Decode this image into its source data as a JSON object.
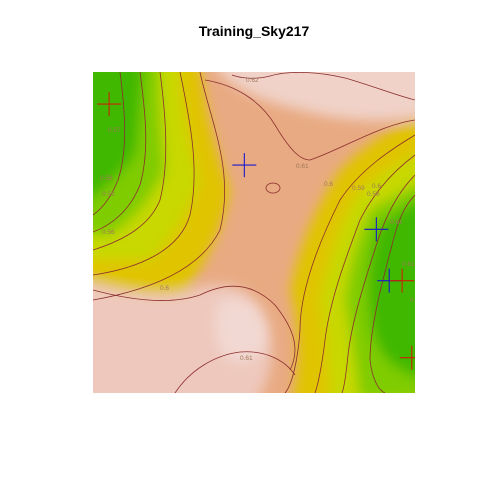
{
  "chart_data": {
    "type": "heatmap",
    "title": "Training_Sky217",
    "xlabel": "",
    "ylabel": "",
    "axes_shown": false,
    "legend": "none",
    "colormap": "terrain",
    "colors": {
      "low": "#2fb500",
      "mid": "#e6e600",
      "high": "#e8a878",
      "peak": "#f0d6d2",
      "contour": "#8b2e2e",
      "contour_label": "#a0785a",
      "marker_red": "#cc2200",
      "marker_blue": "#1a1acc"
    },
    "contour_labels": [
      "0.62",
      "0.61",
      "0.61",
      "0.6",
      "0.6",
      "0.59",
      "0.59",
      "0.57",
      "0.58",
      "0.58",
      "0.56",
      "0.6",
      "0.61",
      "0.61",
      "0.61"
    ],
    "markers": [
      {
        "color": "red",
        "x": 0.05,
        "y": 0.9
      },
      {
        "color": "blue",
        "x": 0.47,
        "y": 0.71
      },
      {
        "color": "blue",
        "x": 0.88,
        "y": 0.51
      },
      {
        "color": "blue",
        "x": 0.92,
        "y": 0.35
      },
      {
        "color": "red",
        "x": 0.96,
        "y": 0.35
      },
      {
        "color": "red",
        "x": 0.99,
        "y": 0.11
      }
    ]
  }
}
